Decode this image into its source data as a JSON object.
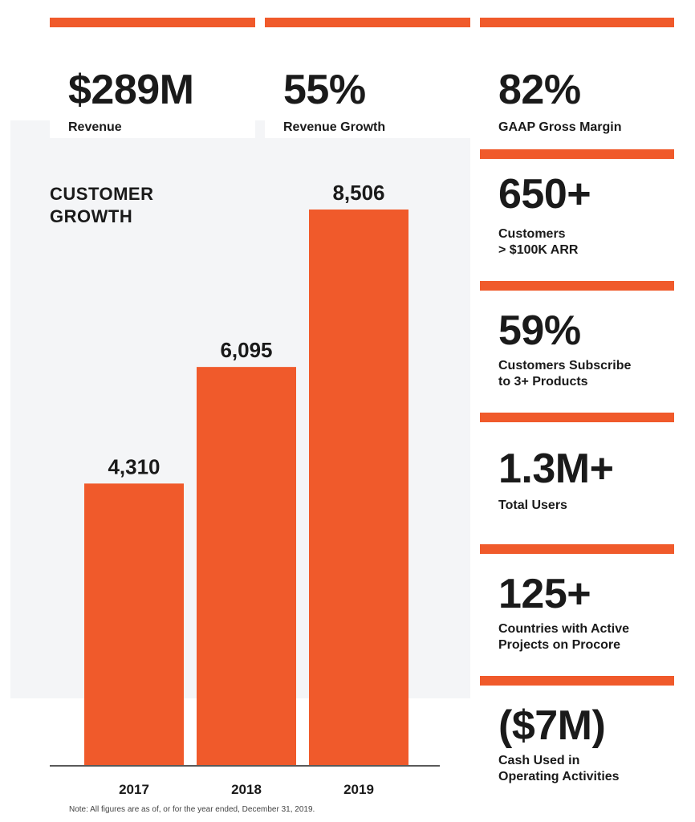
{
  "stats_top": [
    {
      "value": "$289M",
      "label": [
        "Revenue"
      ]
    },
    {
      "value": "55%",
      "label": [
        "Revenue Growth"
      ]
    },
    {
      "value": "82%",
      "label": [
        "GAAP Gross Margin"
      ]
    }
  ],
  "stats_side": [
    {
      "value": "650+",
      "label": [
        "Customers",
        "> $100K ARR"
      ]
    },
    {
      "value": "59%",
      "label": [
        "Customers Subscribe",
        "to 3+ Products"
      ]
    },
    {
      "value": "1.3M+",
      "label": [
        "Total Users"
      ]
    },
    {
      "value": "125+",
      "label": [
        "Countries with Active",
        "Projects on Procore"
      ]
    },
    {
      "value": "($7M)",
      "label": [
        "Cash Used in",
        "Operating Activities"
      ]
    }
  ],
  "chart_data": {
    "type": "bar",
    "title": [
      "CUSTOMER",
      "GROWTH"
    ],
    "categories": [
      "2017",
      "2018",
      "2019"
    ],
    "values": [
      4310,
      6095,
      8506
    ],
    "value_labels": [
      "4,310",
      "6,095",
      "8,506"
    ],
    "ylim": [
      0,
      9000
    ],
    "grid": false
  },
  "note": "Note: All figures are as of, or for the year ended, December 31, 2019.",
  "colors": {
    "accent": "#f05a2b",
    "panel": "#f4f5f7",
    "text": "#1a1a1a"
  }
}
